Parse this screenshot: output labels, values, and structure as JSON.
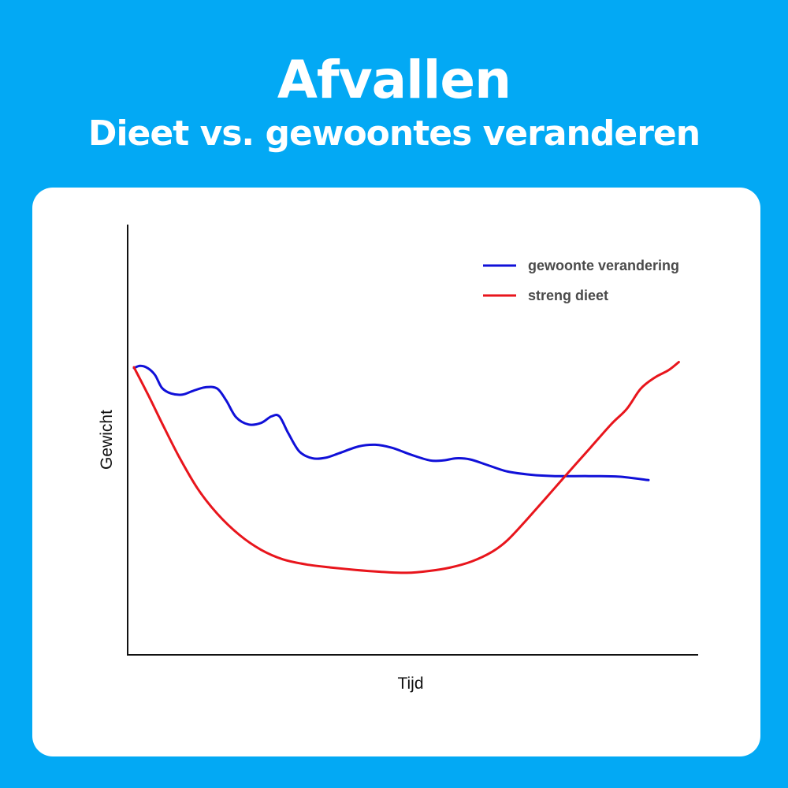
{
  "header": {
    "title": "Afvallen",
    "subtitle": "Dieet vs. gewoontes veranderen"
  },
  "colors": {
    "background": "#03a9f4",
    "card": "#ffffff"
  },
  "chart_data": {
    "type": "line",
    "title": "Afvallen",
    "subtitle": "Dieet vs. gewoontes veranderen",
    "xlabel": "Tijd",
    "ylabel": "Gewicht",
    "grid": false,
    "legend_position": "top-right",
    "x_ticks_shown": false,
    "y_ticks_shown": false,
    "xlim": [
      0,
      100
    ],
    "ylim": [
      0,
      100
    ],
    "series": [
      {
        "name": "gewoonte verandering",
        "color": "#1010d8",
        "points": [
          [
            1.1,
            99.1
          ],
          [
            2.2,
            99.9
          ],
          [
            3.5,
            99.1
          ],
          [
            4.8,
            96.5
          ],
          [
            6.0,
            91.8
          ],
          [
            7.6,
            89.7
          ],
          [
            9.6,
            89.3
          ],
          [
            11.5,
            90.7
          ],
          [
            13.7,
            92.0
          ],
          [
            15.7,
            91.5
          ],
          [
            17.3,
            87.0
          ],
          [
            19.0,
            80.9
          ],
          [
            21.2,
            78.2
          ],
          [
            23.4,
            78.8
          ],
          [
            25.2,
            81.2
          ],
          [
            26.6,
            81.2
          ],
          [
            28.2,
            74.8
          ],
          [
            30.1,
            68.2
          ],
          [
            32.4,
            65.7
          ],
          [
            34.7,
            65.9
          ],
          [
            37.1,
            67.6
          ],
          [
            40.5,
            70.1
          ],
          [
            43.4,
            70.7
          ],
          [
            46.3,
            69.6
          ],
          [
            49.7,
            67.0
          ],
          [
            53.0,
            64.9
          ],
          [
            55.3,
            64.9
          ],
          [
            57.6,
            65.7
          ],
          [
            60.0,
            65.3
          ],
          [
            63.2,
            63.1
          ],
          [
            66.6,
            60.8
          ],
          [
            70.7,
            59.6
          ],
          [
            74.9,
            59.1
          ],
          [
            80.8,
            59.1
          ],
          [
            86.1,
            58.9
          ],
          [
            91.3,
            57.6
          ]
        ]
      },
      {
        "name": "streng dieet",
        "color": "#e8151c",
        "points": [
          [
            1.1,
            99.4
          ],
          [
            3.5,
            89.6
          ],
          [
            6.0,
            78.8
          ],
          [
            8.9,
            66.7
          ],
          [
            12.2,
            54.7
          ],
          [
            15.7,
            45.2
          ],
          [
            19.6,
            37.3
          ],
          [
            23.4,
            31.8
          ],
          [
            27.2,
            28.3
          ],
          [
            31.3,
            26.4
          ],
          [
            35.5,
            25.3
          ],
          [
            39.9,
            24.4
          ],
          [
            44.3,
            23.7
          ],
          [
            48.9,
            23.3
          ],
          [
            52.9,
            24.0
          ],
          [
            56.6,
            25.3
          ],
          [
            60.3,
            27.5
          ],
          [
            63.9,
            31.1
          ],
          [
            66.6,
            35.4
          ],
          [
            70.0,
            43.1
          ],
          [
            73.6,
            51.7
          ],
          [
            77.3,
            60.6
          ],
          [
            81.1,
            69.6
          ],
          [
            84.8,
            78.4
          ],
          [
            87.5,
            84.0
          ],
          [
            89.9,
            91.4
          ],
          [
            92.4,
            95.6
          ],
          [
            94.8,
            98.3
          ],
          [
            96.6,
            101.3
          ]
        ]
      }
    ]
  }
}
